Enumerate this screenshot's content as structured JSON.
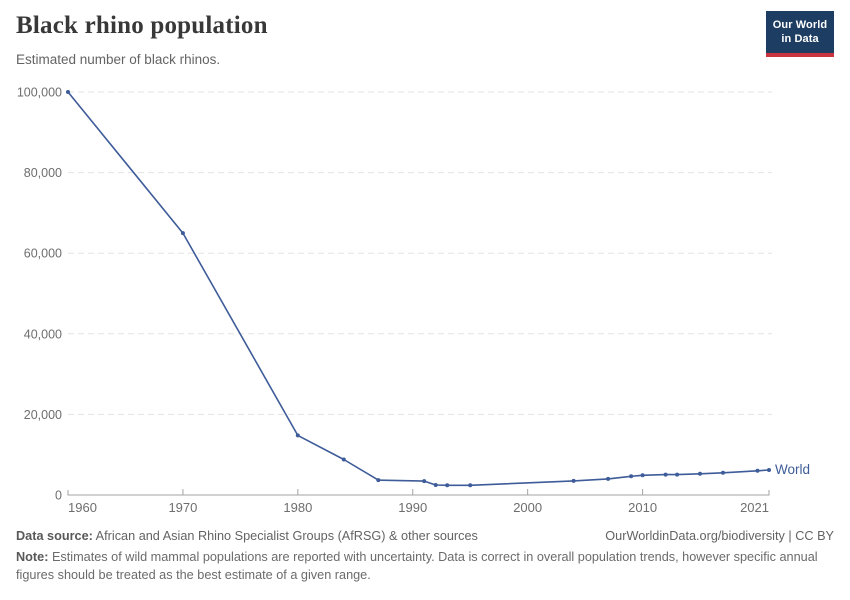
{
  "chart_data": {
    "type": "line",
    "title": "Black rhino population",
    "subtitle": "Estimated number of black rhinos.",
    "x": [
      1960,
      1970,
      1980,
      1984,
      1987,
      1991,
      1992,
      1993,
      1995,
      2004,
      2007,
      2009,
      2010,
      2012,
      2013,
      2015,
      2017,
      2020,
      2021
    ],
    "series": [
      {
        "name": "World",
        "color": "#3e5c99",
        "values": [
          100000,
          65000,
          14800,
          8800,
          3700,
          3450,
          2480,
          2400,
          2410,
          3500,
          4000,
          4650,
          4880,
          5050,
          5060,
          5250,
          5500,
          6000,
          6200
        ]
      }
    ],
    "xlim": [
      1960,
      2021
    ],
    "ylim": [
      0,
      100000
    ],
    "x_ticks": [
      1960,
      1970,
      1980,
      1990,
      2000,
      2010,
      2021
    ],
    "y_ticks": [
      0,
      20000,
      40000,
      60000,
      80000,
      100000
    ],
    "grid": "horizontal-dashed",
    "legend": "line-end-label",
    "markers": true
  },
  "logo": {
    "line1": "Our World",
    "line2": "in Data",
    "bg_color": "#1d3d63",
    "accent_color": "#c9343f"
  },
  "footer": {
    "datasource_label": "Data source:",
    "datasource_text": " African and Asian Rhino Specialist Groups (AfRSG) & other sources",
    "attribution": "OurWorldinData.org/biodiversity | CC BY",
    "note_label": "Note:",
    "note_text": " Estimates of wild mammal populations are reported with uncertainty. Data is correct in overall population trends, however specific annual figures should be treated as the best estimate of a given range."
  },
  "style": {
    "grid_color": "#e3e3e3",
    "axis_color": "#a3a3a3",
    "tick_label_color": "#6e6e6e"
  }
}
